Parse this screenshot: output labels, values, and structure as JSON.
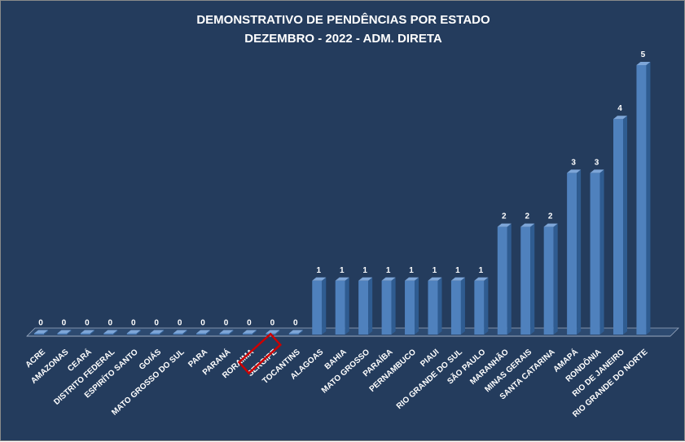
{
  "chart_data": {
    "type": "bar",
    "title": "DEMONSTRATIVO DE PENDÊNCIAS POR ESTADO",
    "subtitle": "DEZEMBRO - 2022 - ADM. DIRETA",
    "categories": [
      "ACRE",
      "AMAZONAS",
      "CEARÁ",
      "DISTRITO FEDERAL",
      "ESPIRÍTO SANTO",
      "GOIÁS",
      "MATO GROSSO DO SUL",
      "PARA",
      "PARANÁ",
      "RORAIMA",
      "SERGIPE",
      "TOCANTINS",
      "ALAGOAS",
      "BAHIA",
      "MATO GROSSO",
      "PARAÍBA",
      "PERNAMBUCO",
      "PIAUI",
      "RIO GRANDE DO SUL",
      "SÃO PAULO",
      "MARANHÃO",
      "MINAS GERAIS",
      "SANTA CATARINA",
      "AMAPÁ",
      "RONDÔNIA",
      "RIO DE JANEIRO",
      "RIO GRANDE DO NORTE"
    ],
    "values": [
      0,
      0,
      0,
      0,
      0,
      0,
      0,
      0,
      0,
      0,
      0,
      0,
      1,
      1,
      1,
      1,
      1,
      1,
      1,
      1,
      2,
      2,
      2,
      3,
      3,
      4,
      5
    ],
    "highlighted_category": "SERGIPE",
    "ylim": [
      0,
      5
    ],
    "grid": false,
    "legend": false,
    "bar_color": "#4f81bd",
    "background_color": "#243c5d",
    "highlight_color": "#cc0000"
  }
}
